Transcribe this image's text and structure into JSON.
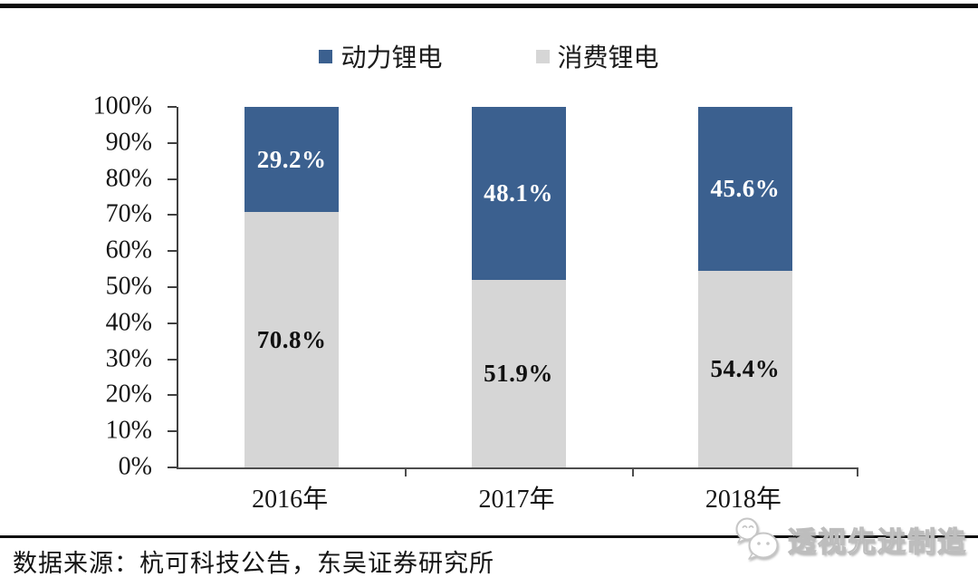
{
  "page": {
    "background": "#ffffff",
    "top_rule_color": "#0b0b0b",
    "footer_rule_color": "#0d0d0d"
  },
  "chart_data": {
    "type": "bar",
    "stacked": true,
    "units": "percent",
    "title": "",
    "xlabel": "",
    "ylabel": "",
    "categories": [
      "2016年",
      "2017年",
      "2018年"
    ],
    "series": [
      {
        "name": "动力锂电",
        "color": "#3B608F",
        "label_color": "#ffffff",
        "values": [
          29.2,
          48.1,
          45.6
        ],
        "labels": [
          "29.2%",
          "48.1%",
          "45.6%"
        ]
      },
      {
        "name": "消费锂电",
        "color": "#D6D6D6",
        "label_color": "#111111",
        "values": [
          70.8,
          51.9,
          54.4
        ],
        "labels": [
          "70.8%",
          "51.9%",
          "54.4%"
        ]
      }
    ],
    "ylim": [
      0,
      100
    ],
    "y_tick_labels": [
      "100%",
      "90%",
      "80%",
      "70%",
      "60%",
      "50%",
      "40%",
      "30%",
      "20%",
      "10%",
      "0%"
    ],
    "legend_position": "top",
    "grid": false,
    "axis_color": "#404040"
  },
  "footer": {
    "source": "数据来源：杭可科技公告，东吴证券研究所",
    "watermark": "透视先进制造"
  }
}
